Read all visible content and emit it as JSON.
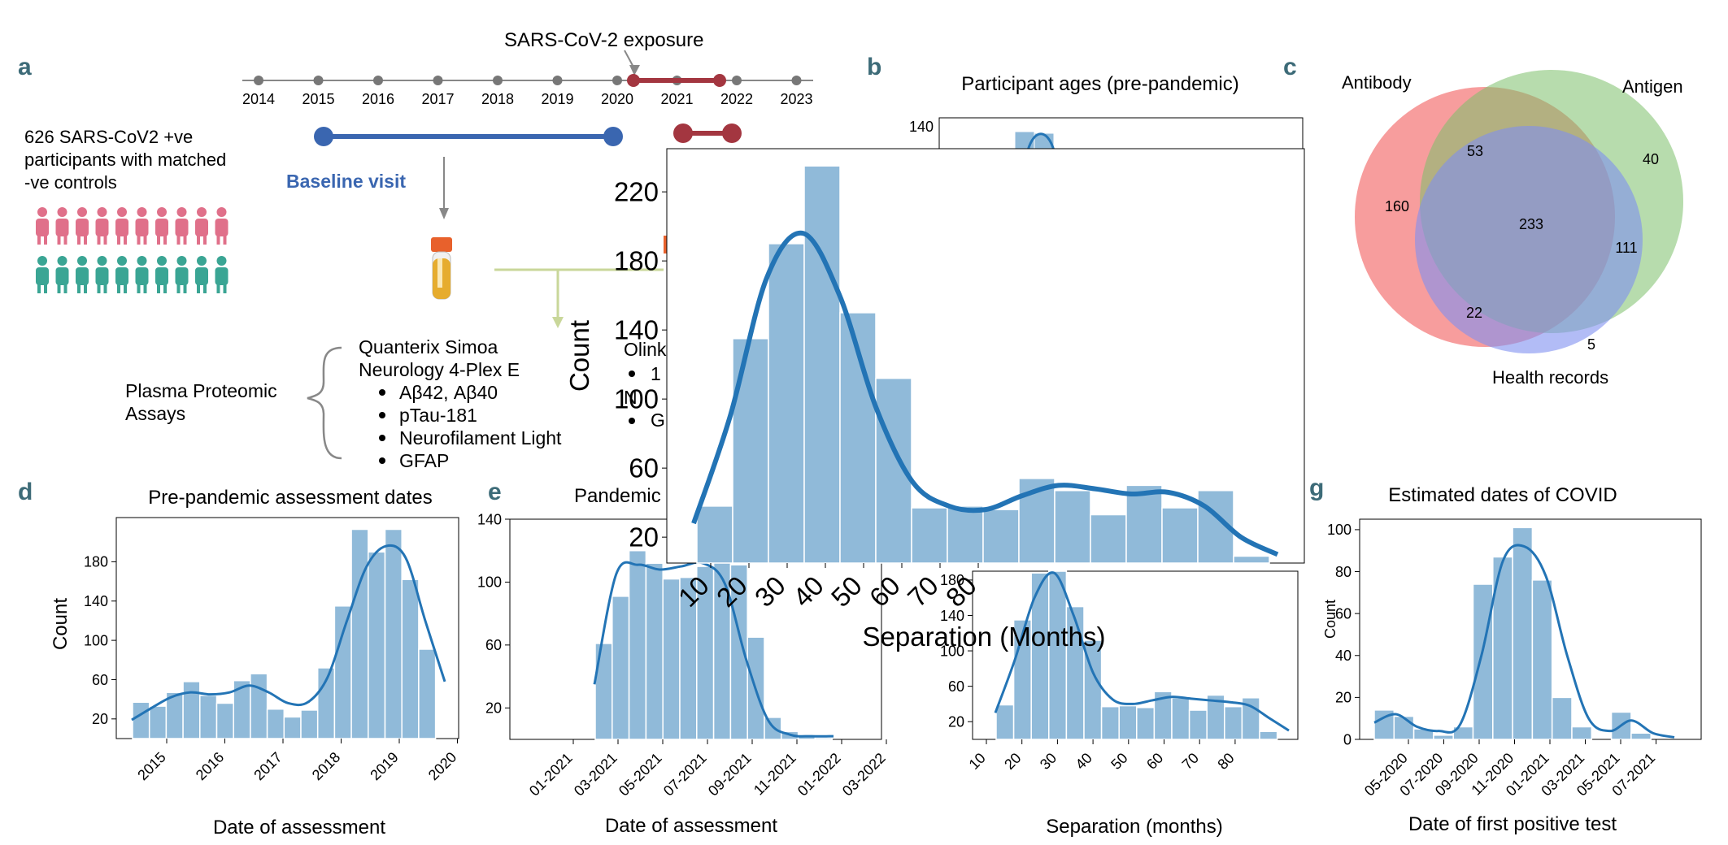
{
  "panels": {
    "a": {
      "letter": "a",
      "exposure_label": "SARS-CoV-2 exposure",
      "years": [
        "2014",
        "2015",
        "2016",
        "2017",
        "2018",
        "2019",
        "2020",
        "2021",
        "2022",
        "2023"
      ],
      "cohort_text": [
        "626 SARS-CoV2 +ve",
        "participants with matched",
        " -ve controls"
      ],
      "baseline_label": "Baseline visit",
      "assays_label": [
        "Plasma Proteomic",
        "Assays"
      ],
      "quanterix_title": [
        "Quanterix Simoa",
        "Neurology 4-Plex E"
      ],
      "quanterix_items": [
        "Aβ42, Aβ40",
        "pTau-181",
        "Neurofilament Light",
        "GFAP"
      ],
      "olink_partial": [
        "Olink",
        "1",
        "N",
        "G"
      ],
      "colors": {
        "baseline": "#3a66b0",
        "pandemic": "#a33640",
        "female": "#e0708a",
        "male": "#3aa594",
        "arrow_green": "#c9d79a"
      }
    },
    "b": {
      "letter": "b",
      "title": "Participant ages (pre-pandemic)",
      "tick_visible": "140"
    },
    "c": {
      "letter": "c",
      "labels": {
        "antibody": "Antibody",
        "antigen": "Antigen",
        "health": "Health records"
      },
      "counts": {
        "a_only": "160",
        "ab_ag": "53",
        "ag_only": "40",
        "all": "233",
        "ag_h": "111",
        "a_h": "22",
        "h_only": "5"
      },
      "colors": {
        "antibody": "#f25c5c",
        "antigen": "#7cbf6a",
        "health": "#7f8ff0"
      }
    },
    "d": {
      "letter": "d",
      "title": "Pre-pandemic assessment dates",
      "xlabel": "Date of assessment",
      "ylabel": "Count"
    },
    "e": {
      "letter": "e",
      "title": "Pandemic",
      "xlabel": "Date of assessment"
    },
    "f": {
      "xlabel": "Separation (months)"
    },
    "g": {
      "letter": "g",
      "title": "Estimated dates of COVID",
      "xlabel": "Date of first positive test",
      "ylabel": "Count"
    },
    "overlay": {
      "xlabel": "Separation (Months)",
      "ylabel": "Count"
    }
  },
  "chart_data": [
    {
      "id": "d",
      "type": "bar",
      "categories": [
        "2014.4",
        "2014.7",
        "2015.0",
        "2015.3",
        "2015.6",
        "2015.9",
        "2016.2",
        "2016.5",
        "2016.8",
        "2017.1",
        "2017.4",
        "2017.7",
        "2018.0",
        "2018.3",
        "2018.6",
        "2018.9",
        "2019.2",
        "2019.5",
        "2019.8"
      ],
      "values": [
        37,
        33,
        47,
        58,
        44,
        36,
        59,
        66,
        30,
        22,
        29,
        72,
        135,
        213,
        190,
        213,
        162,
        91,
        0
      ],
      "kde": [
        19,
        31,
        42,
        47,
        45,
        47,
        54,
        47,
        36,
        37,
        62,
        120,
        175,
        196,
        184,
        120,
        58
      ],
      "xticks": [
        "2015",
        "2016",
        "2017",
        "2018",
        "2019",
        "2020"
      ],
      "yticks": [
        20,
        60,
        100,
        140,
        180
      ],
      "ylim": [
        0,
        225
      ]
    },
    {
      "id": "e",
      "type": "bar",
      "values": [
        61,
        91,
        120,
        112,
        102,
        103,
        110,
        113,
        111,
        65,
        14,
        5,
        2,
        1,
        0
      ],
      "kde": [
        35,
        105,
        111,
        108,
        110,
        112,
        99,
        50,
        12,
        3,
        2,
        2
      ],
      "xticks": [
        "01-2021",
        "03-2021",
        "05-2021",
        "07-2021",
        "09-2021",
        "11-2021",
        "01-2022",
        "03-2022"
      ],
      "yticks": [
        20,
        60,
        100,
        140
      ],
      "ylim": [
        0,
        140
      ]
    },
    {
      "id": "f",
      "type": "bar",
      "values": [
        39,
        135,
        188,
        190,
        150,
        112,
        37,
        38,
        36,
        54,
        47,
        33,
        50,
        37,
        47,
        9
      ],
      "kde": [
        30,
        90,
        160,
        188,
        140,
        75,
        45,
        40,
        44,
        48,
        46,
        44,
        42,
        38,
        24,
        10
      ],
      "xticks": [
        10,
        20,
        30,
        40,
        50,
        60,
        70,
        80
      ],
      "yticks": [
        20,
        60,
        100,
        140,
        180
      ],
      "ylim": [
        0,
        190
      ]
    },
    {
      "id": "g",
      "type": "bar",
      "values": [
        14,
        11,
        5,
        2,
        6,
        74,
        87,
        101,
        76,
        20,
        6,
        0,
        13,
        3,
        0
      ],
      "kde": [
        8,
        12,
        6,
        4,
        7,
        40,
        85,
        92,
        78,
        40,
        10,
        4,
        9,
        3,
        1
      ],
      "xticks": [
        "05-2020",
        "07-2020",
        "09-2020",
        "11-2020",
        "01-2021",
        "03-2021",
        "05-2021",
        "07-2021"
      ],
      "yticks": [
        0,
        20,
        40,
        60,
        80,
        100
      ],
      "ylim": [
        0,
        105
      ]
    },
    {
      "id": "overlay",
      "type": "bar",
      "xlabel": "Separation (Months)",
      "ylabel": "Count",
      "values": [
        38,
        135,
        190,
        235,
        150,
        112,
        37,
        38,
        36,
        54,
        47,
        33,
        50,
        37,
        47,
        9
      ],
      "kde": [
        28,
        90,
        170,
        196,
        160,
        95,
        52,
        38,
        36,
        44,
        50,
        48,
        45,
        46,
        38,
        20,
        10
      ],
      "xticks": [
        10,
        20,
        30,
        40,
        50,
        60,
        70,
        80
      ],
      "yticks": [
        20,
        60,
        100,
        140,
        180,
        220
      ],
      "ylim": [
        5,
        245
      ]
    }
  ]
}
